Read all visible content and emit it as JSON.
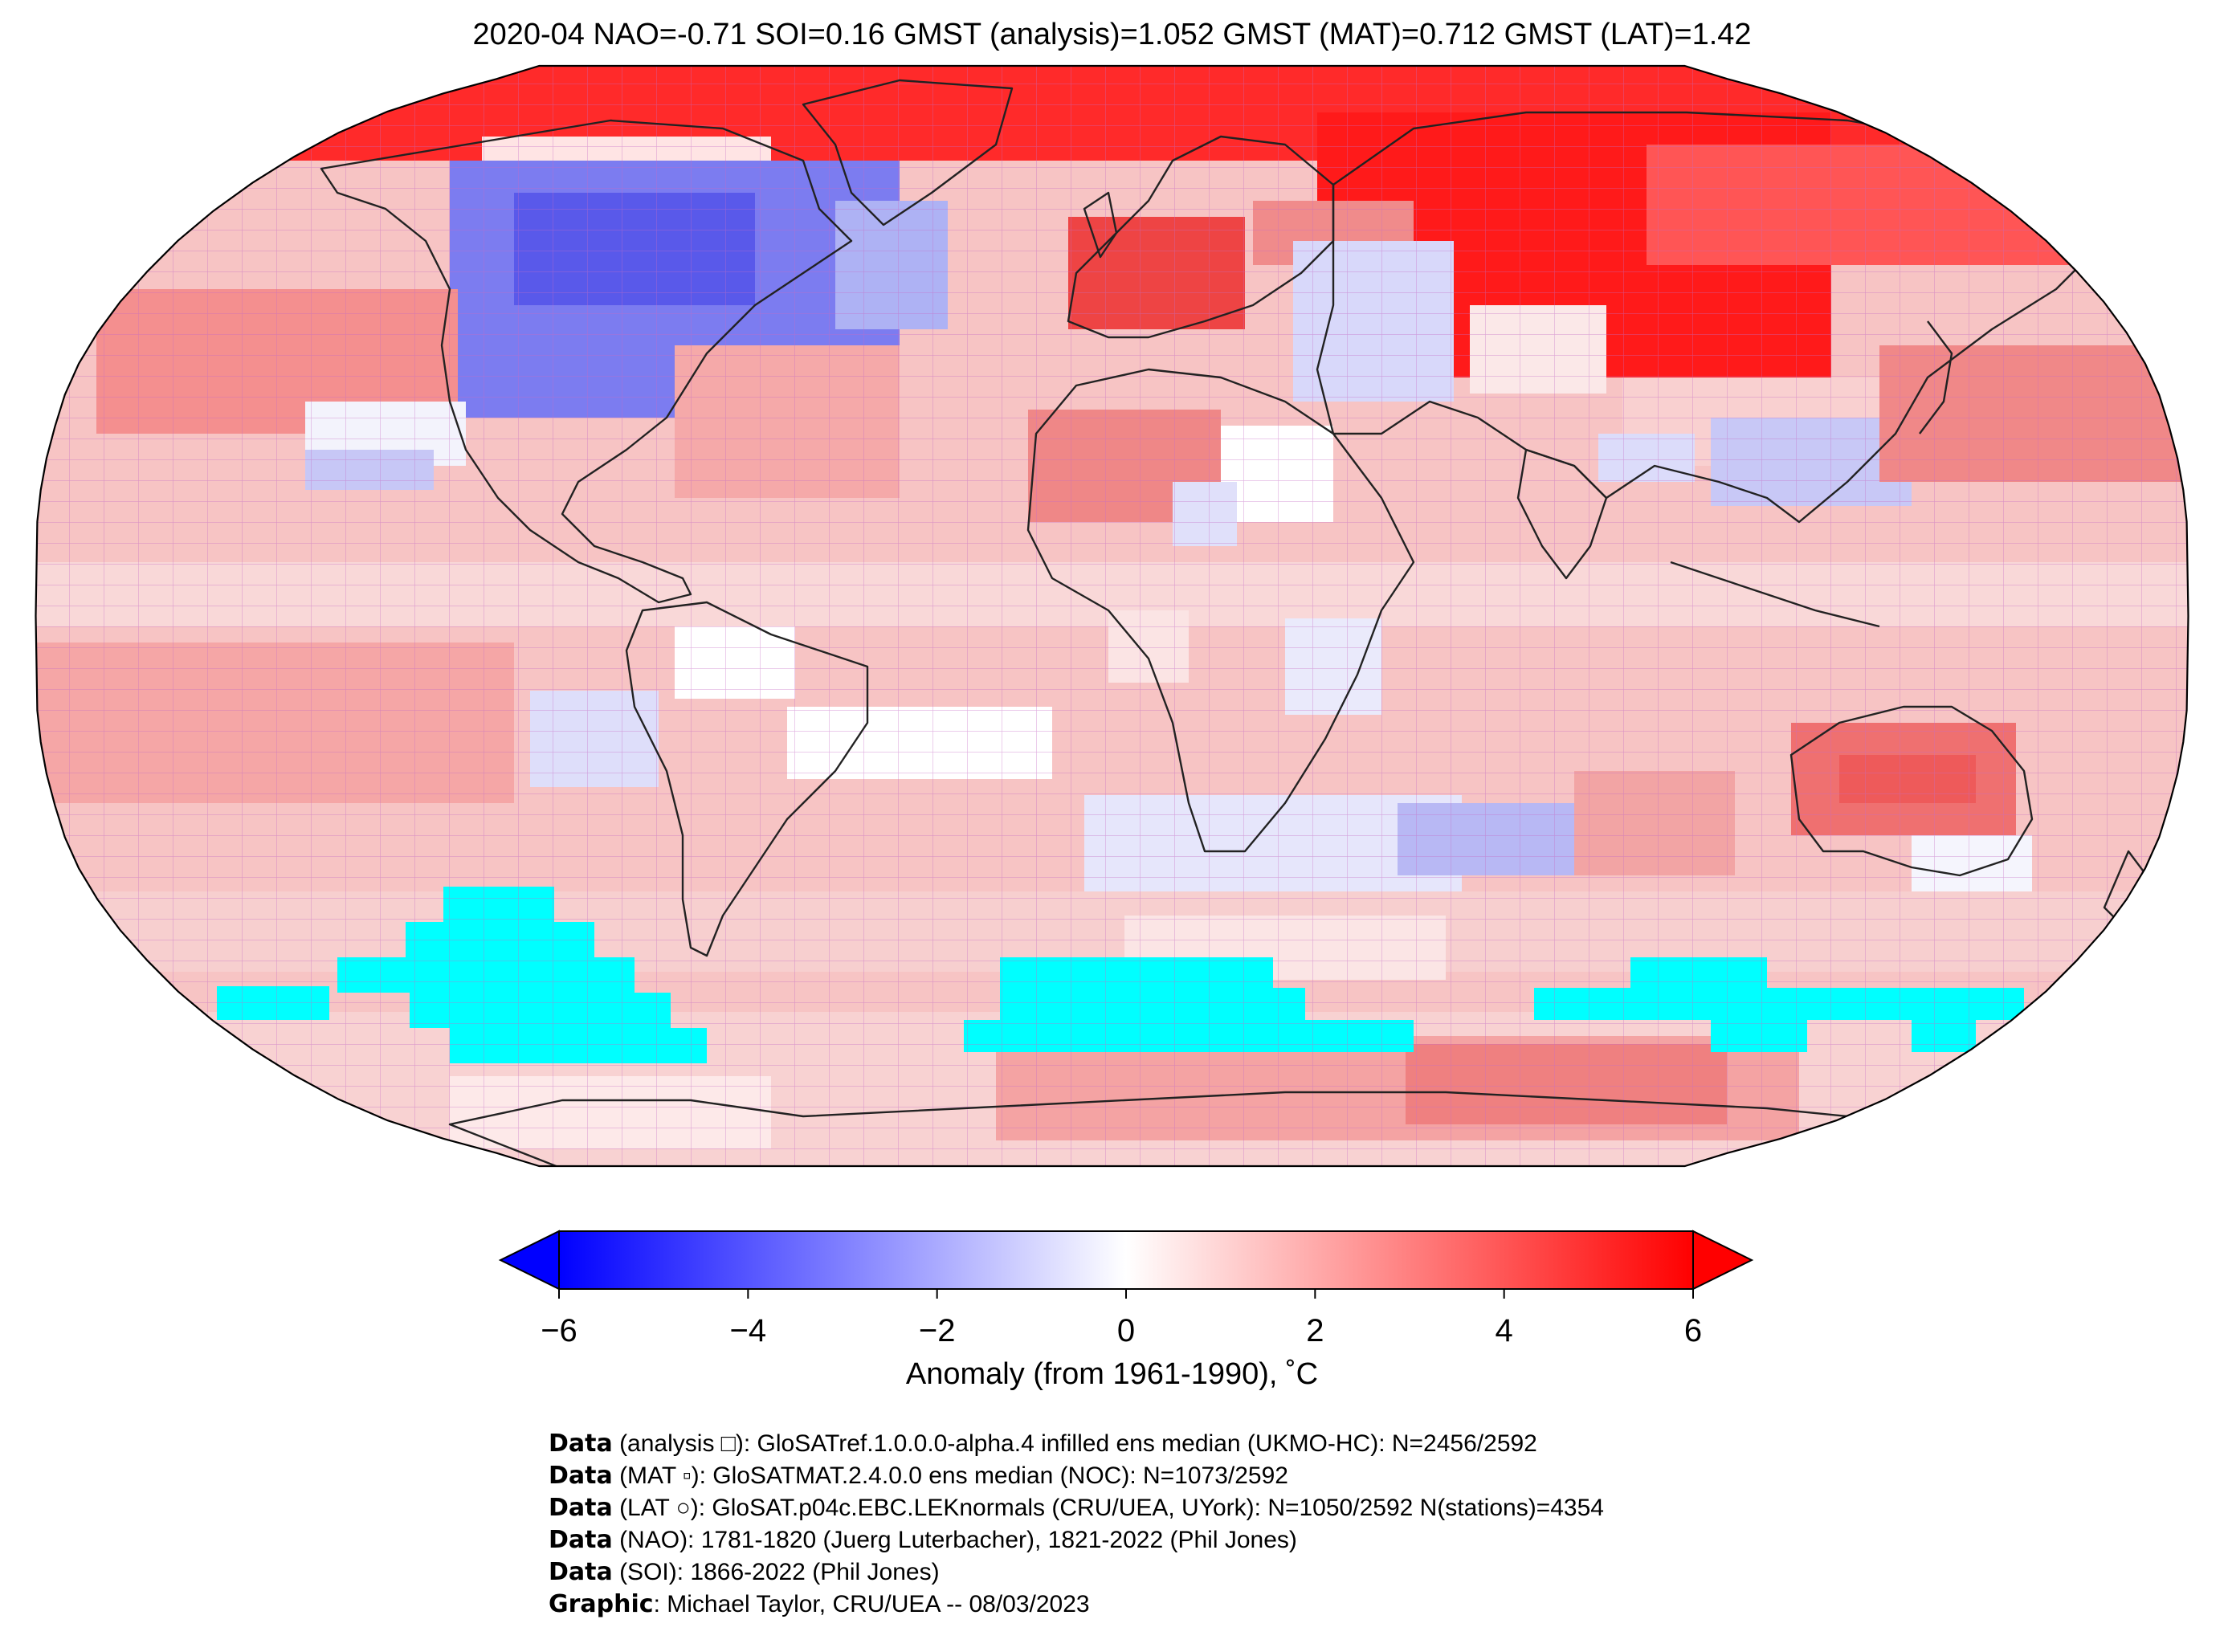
{
  "title": "2020-04 NAO=-0.71 SOI=0.16 GMST (analysis)=1.052 GMST (MAT)=0.712 GMST (LAT)=1.42",
  "colorbar": {
    "label": "Anomaly (from 1961-1990), ˚C",
    "ticks": [
      "−6",
      "−4",
      "−2",
      "0",
      "2",
      "4",
      "6"
    ],
    "range": [
      -6,
      6
    ],
    "colors": {
      "low": "#0000ff",
      "mid": "#ffffff",
      "high": "#ff0000",
      "no_data": "#00ffff"
    }
  },
  "credits": [
    {
      "bold": "Data",
      "text": " (analysis □): GloSATref.1.0.0.0-alpha.4 infilled ens median (UKMO-HC): N=2456/2592"
    },
    {
      "bold": "Data",
      "text": " (MAT ▫): GloSATMAT.2.4.0.0 ens median (NOC): N=1073/2592"
    },
    {
      "bold": "Data",
      "text": " (LAT ○): GloSAT.p04c.EBC.LEKnormals (CRU/UEA, UYork): N=1050/2592 N(stations)=4354"
    },
    {
      "bold": "Data",
      "text": " (NAO): 1781-1820 (Juerg Luterbacher), 1821-2022 (Phil Jones)"
    },
    {
      "bold": "Data",
      "text": " (SOI): 1866-2022 (Phil Jones)"
    },
    {
      "bold": "Graphic",
      "text": ": Michael Taylor, CRU/UEA -- 08/03/2023"
    }
  ]
}
